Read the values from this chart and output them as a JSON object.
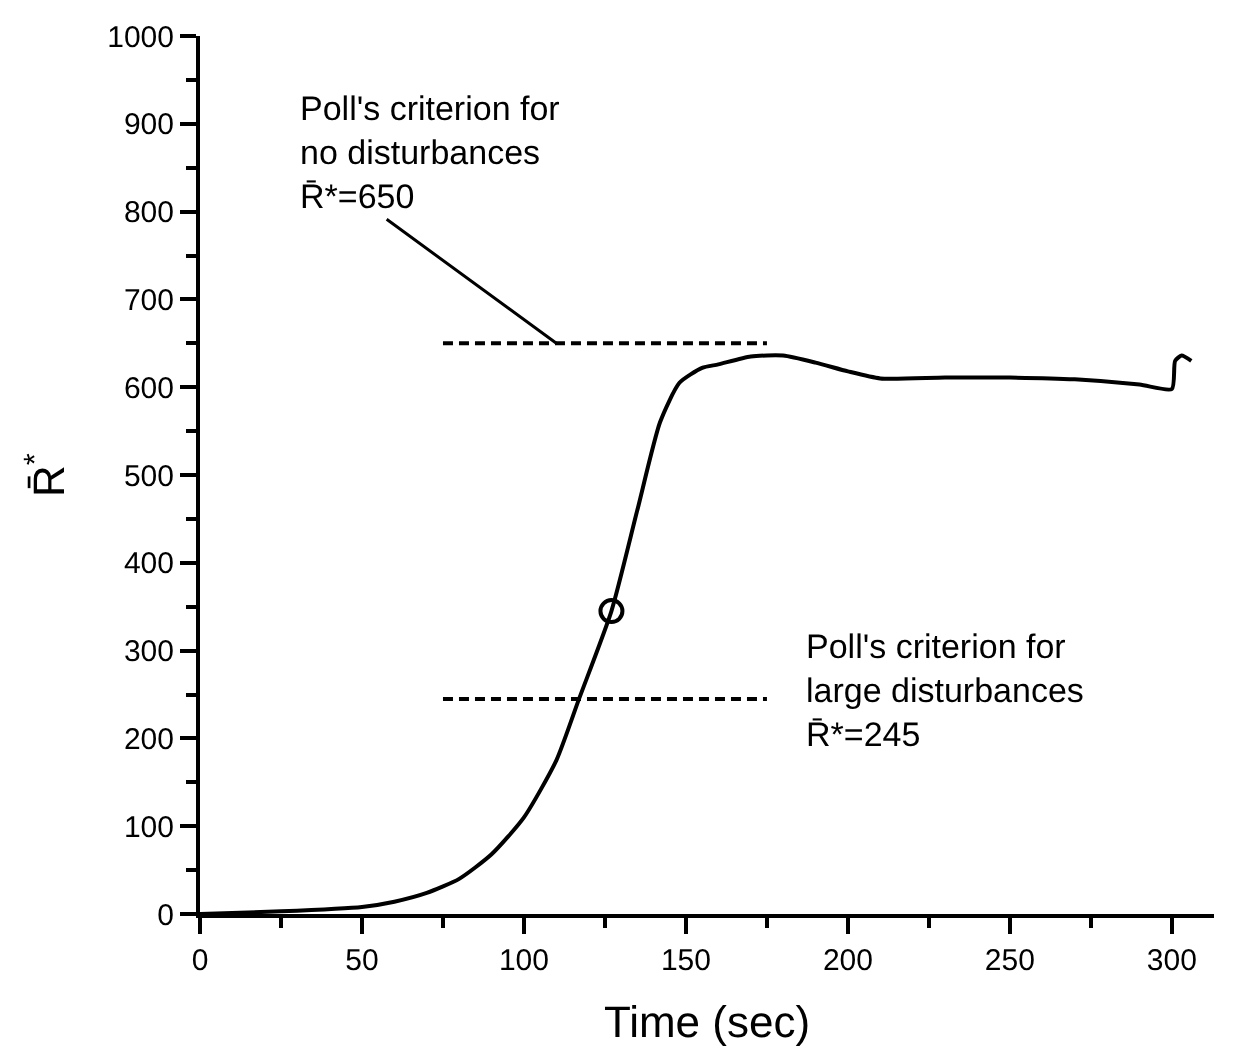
{
  "chart_data": {
    "type": "line",
    "xlabel": "Time (sec)",
    "ylabel": "R̄$^{*}$",
    "xlim": [
      0,
      313
    ],
    "ylim": [
      0,
      1000
    ],
    "xticks": [
      0,
      {
        "value": 25,
        "label": null
      },
      50,
      {
        "value": 75,
        "label": null
      },
      100,
      {
        "value": 125,
        "label": null
      },
      150,
      {
        "value": 175,
        "label": null
      },
      200,
      {
        "value": 225,
        "label": null
      },
      250,
      {
        "value": 275,
        "label": null
      },
      300
    ],
    "yticks": [
      0,
      {
        "value": 50,
        "label": null
      },
      100,
      {
        "value": 150,
        "label": null
      },
      200,
      {
        "value": 250,
        "label": null
      },
      300,
      {
        "value": 350,
        "label": null
      },
      400,
      {
        "value": 450,
        "label": null
      },
      500,
      {
        "value": 550,
        "label": null
      },
      600,
      {
        "value": 650,
        "label": null
      },
      700,
      {
        "value": 750,
        "label": null
      },
      800,
      {
        "value": 850,
        "label": null
      },
      900,
      {
        "value": 950,
        "label": null
      },
      1000
    ],
    "series": [
      {
        "color": "#000000",
        "marker": "none",
        "line_style": "solid",
        "x": [
          0,
          25,
          50,
          60,
          70,
          80,
          90,
          100,
          110,
          117,
          127,
          135,
          142,
          148,
          155,
          160,
          170,
          180,
          190,
          200,
          210,
          230,
          250,
          270,
          290,
          300,
          301,
          303,
          306
        ],
        "values": [
          0,
          3,
          8,
          14,
          24,
          40,
          68,
          110,
          175,
          245,
          345,
          460,
          560,
          605,
          622,
          626,
          635,
          636,
          628,
          618,
          610,
          611,
          611,
          609,
          603,
          598,
          630,
          636,
          630
        ]
      },
      {
        "color": "#000000",
        "marker": "none",
        "line_style": "dashed",
        "x": [
          75,
          175
        ],
        "values": [
          650,
          650
        ]
      },
      {
        "color": "#000000",
        "marker": "none",
        "line_style": "dashed",
        "x": [
          75,
          175
        ],
        "values": [
          245,
          245
        ]
      },
      {
        "type": "scatter",
        "color": "#000000",
        "marker": "circle",
        "x": [
          127
        ],
        "values": [
          345
        ]
      }
    ],
    "annotations": [
      {
        "text": "Poll's criterion for\nno disturbances\nR̄*=650",
        "x": 110,
        "y": 650
      },
      {
        "text": "Poll's criterion for\nlarge disturbances\nR̄*=245",
        "x": 175,
        "y": 245
      }
    ]
  }
}
